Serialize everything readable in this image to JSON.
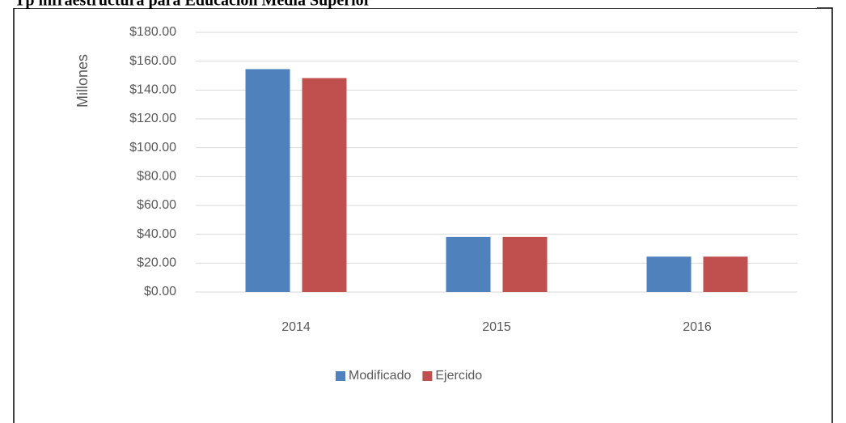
{
  "chart_data": {
    "type": "bar",
    "title": "Tp infraestructura para Educación Media Superior",
    "y_label": "Millones",
    "categories": [
      "2014",
      "2015",
      "2016"
    ],
    "series": [
      {
        "name": "Modificado",
        "color": "#4f81bd",
        "values": [
          154.5,
          38.2,
          24.5
        ]
      },
      {
        "name": "Ejercido",
        "color": "#c0504d",
        "values": [
          148.3,
          38.2,
          24.5
        ]
      }
    ],
    "ylim": [
      0,
      180
    ],
    "yticks": [
      {
        "value": 0,
        "label": "$0.00"
      },
      {
        "value": 20,
        "label": "$20.00"
      },
      {
        "value": 40,
        "label": "$40.00"
      },
      {
        "value": 60,
        "label": "$60.00"
      },
      {
        "value": 80,
        "label": "$80.00"
      },
      {
        "value": 100,
        "label": "$100.00"
      },
      {
        "value": 120,
        "label": "$120.00"
      },
      {
        "value": 140,
        "label": "$140.00"
      },
      {
        "value": 160,
        "label": "$160.00"
      },
      {
        "value": 180,
        "label": "$180.00"
      }
    ],
    "grid": true,
    "legend": "bottom"
  }
}
